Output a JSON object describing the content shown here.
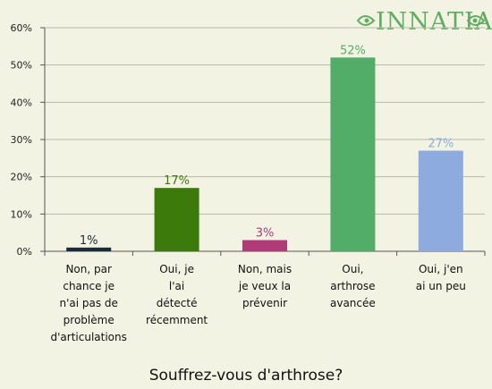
{
  "logo": {
    "text": "INNATIA",
    "color": "#5fae5f"
  },
  "chart_data": {
    "type": "bar",
    "title": "Souffrez-vous d'arthrose?",
    "categories": [
      "Non, par chance je n'ai pas de problème d'articulations",
      "Oui, je l'ai détecté récemment",
      "Non, mais je veux la prévenir",
      "Oui, arthrose avancée",
      "Oui, j'en ai un peu"
    ],
    "category_lines": [
      [
        "Non, par",
        "chance je",
        "n'ai pas de",
        "problème",
        "d'articulations"
      ],
      [
        "Oui, je",
        "l'ai",
        "détecté",
        "récemment"
      ],
      [
        "Non, mais",
        "je veux la",
        "prévenir"
      ],
      [
        "Oui,",
        "arthrose",
        "avancée"
      ],
      [
        "Oui, j'en",
        "ai un peu"
      ]
    ],
    "values": [
      1,
      17,
      3,
      52,
      27
    ],
    "value_labels": [
      "1%",
      "17%",
      "3%",
      "52%",
      "27%"
    ],
    "colors": [
      "#1d2a3a",
      "#3d7a0c",
      "#b03a7a",
      "#52ad68",
      "#8eabdf"
    ],
    "label_colors": [
      "#1d2a3a",
      "#3d7a0c",
      "#b03a7a",
      "#52ad68",
      "#8eabdf"
    ],
    "ylim": [
      0,
      60
    ],
    "yticks": [
      0,
      10,
      20,
      30,
      40,
      50,
      60
    ],
    "ytick_labels": [
      "0%",
      "10%",
      "20%",
      "30%",
      "40%",
      "50%",
      "60%"
    ],
    "grid": true,
    "xlabel": "",
    "ylabel": ""
  }
}
